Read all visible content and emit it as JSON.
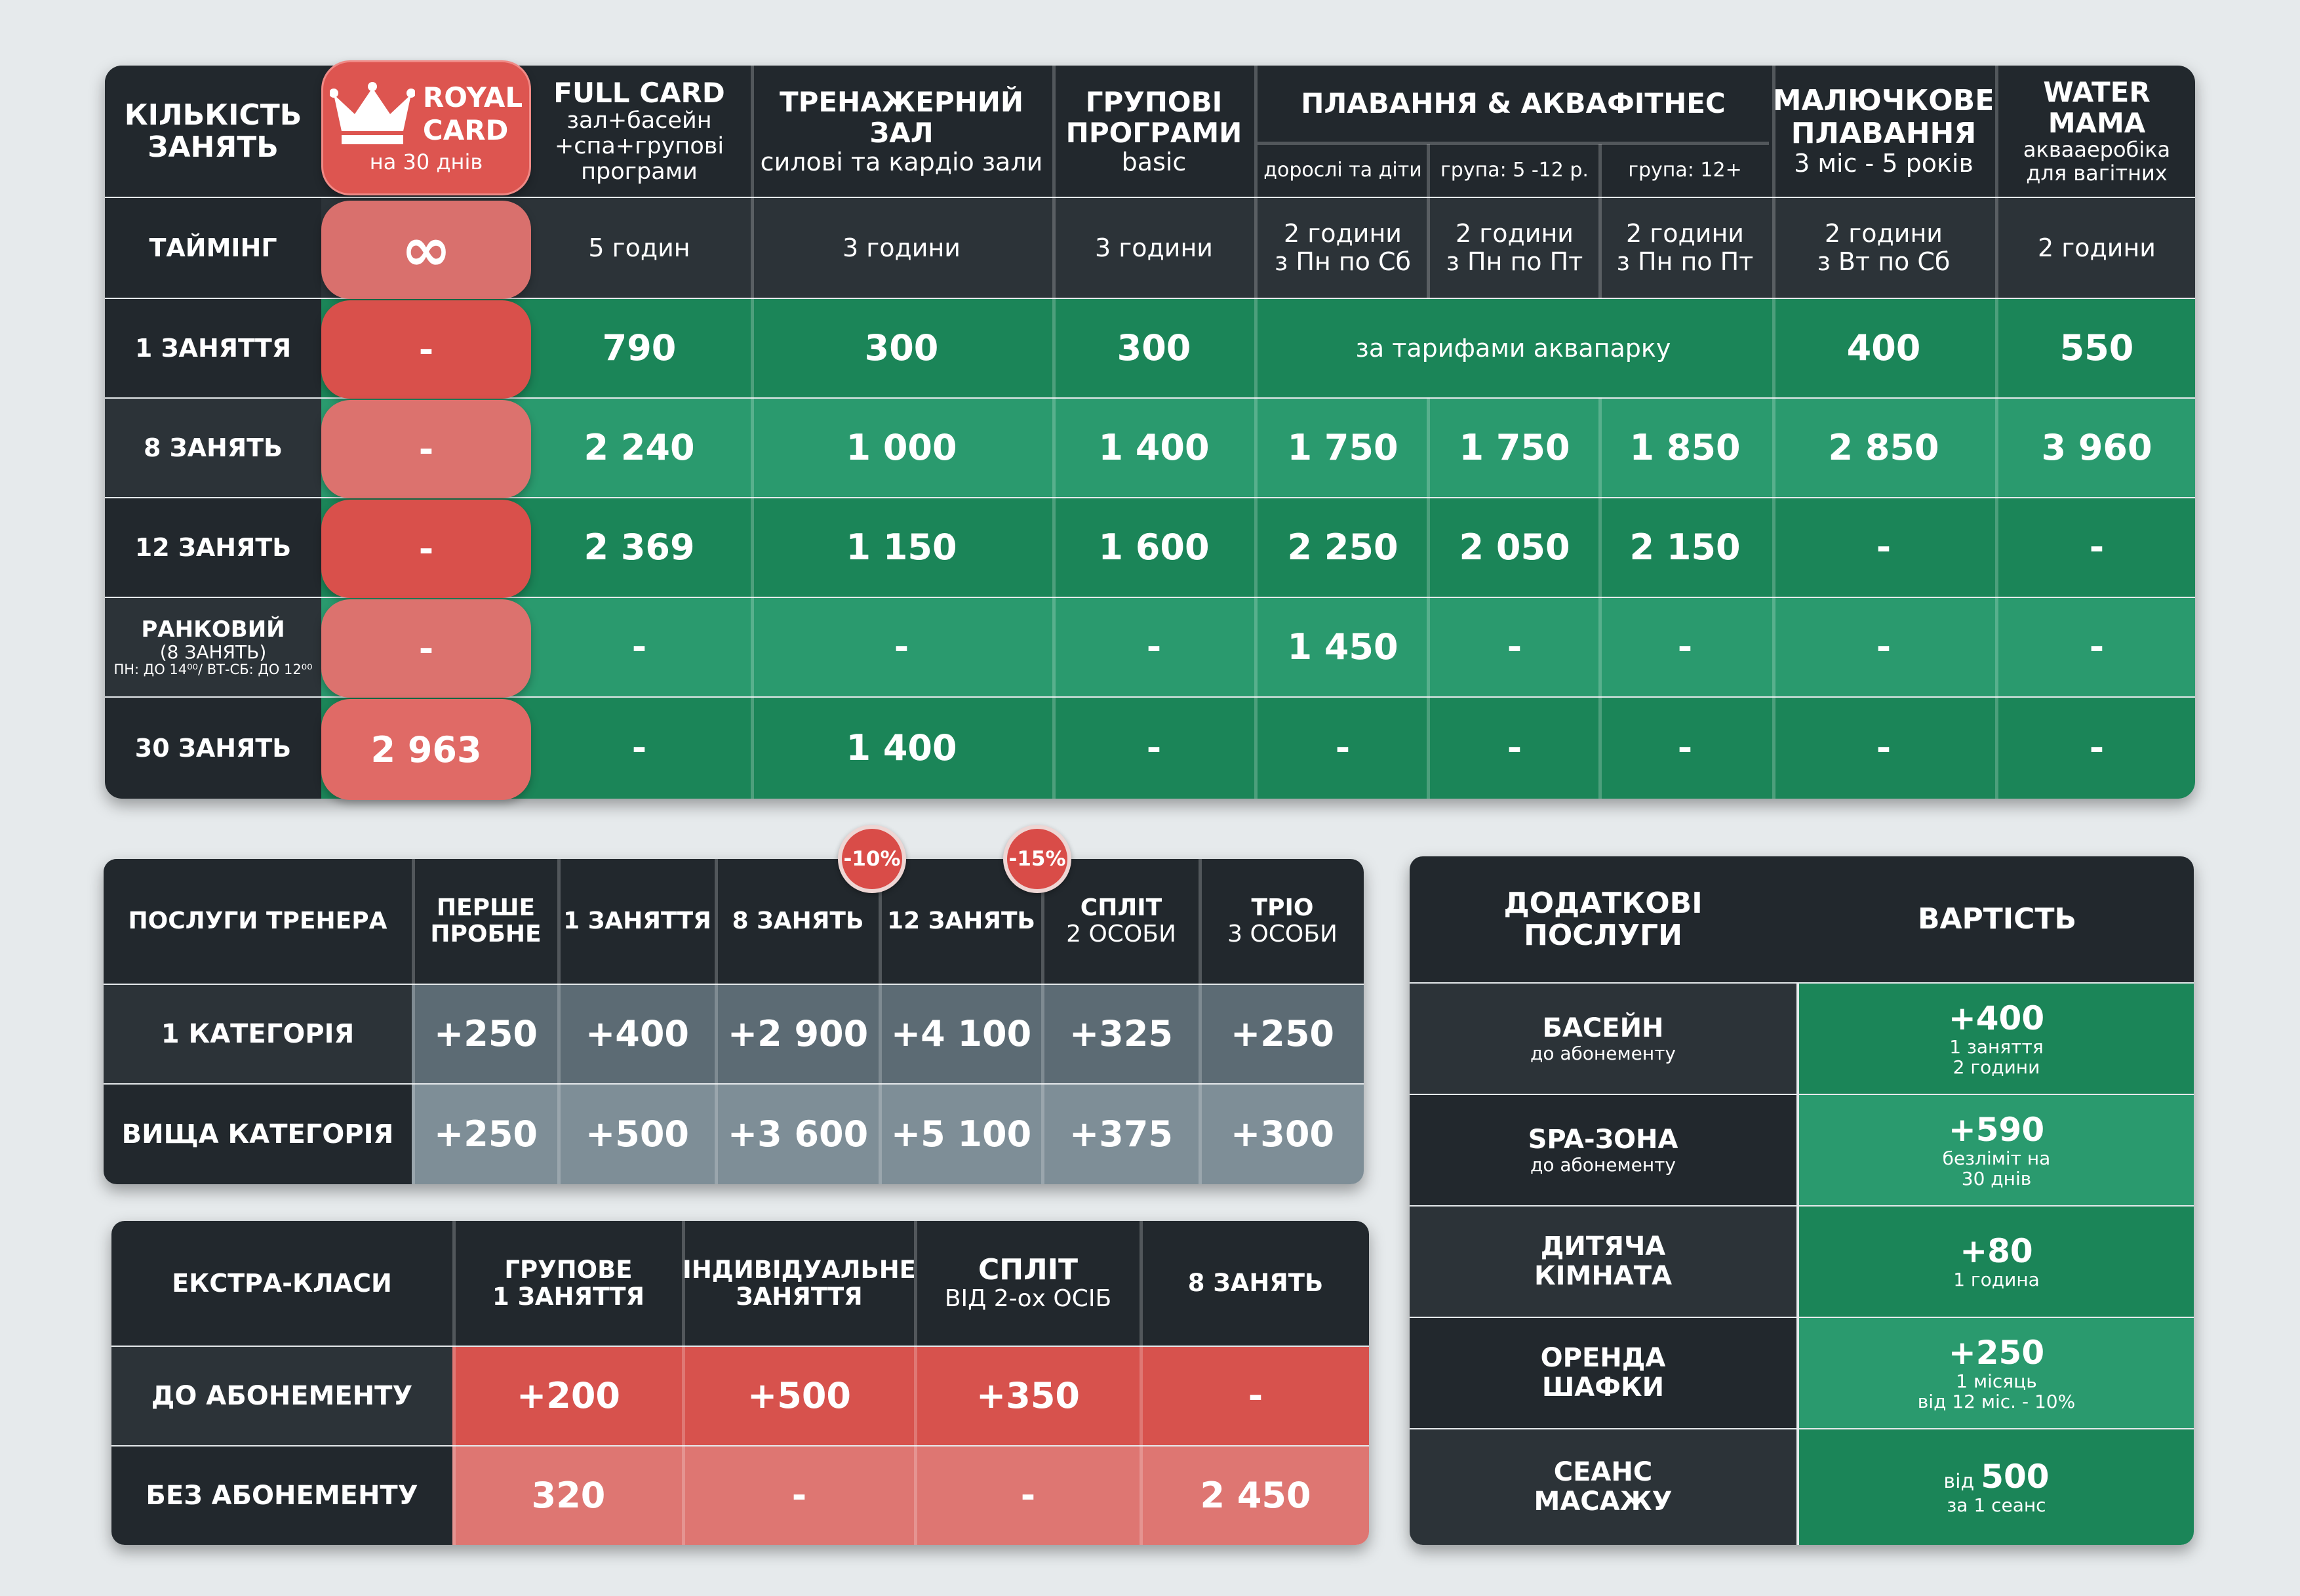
{
  "main": {
    "corner": "КІЛЬКІСТЬ ЗАНЯТЬ",
    "royal": {
      "title1": "ROYAL",
      "title2": "CARD",
      "sub": "на 30 днів",
      "timing_icon": "∞",
      "values": [
        "-",
        "-",
        "-",
        "-",
        "2 963"
      ]
    },
    "columns": [
      {
        "title": "FULL CARD",
        "sub": "зал+басейн\n+спа+групові\nпрограми"
      },
      {
        "title": "ТРЕНАЖЕРНИЙ\nЗАЛ",
        "sub": "силові та кардіо зали"
      },
      {
        "title": "ГРУПОВІ\nПРОГРАМИ",
        "sub": "basic"
      },
      {
        "title": "ПЛАВАННЯ & АКВАФІТНЕС",
        "subs": [
          "дорослі та діти",
          "група: 5 -12 р.",
          "група: 12+"
        ]
      },
      {
        "title": "МАЛЮЧКОВЕ\nПЛАВАННЯ",
        "sub": "3 міс - 5 років"
      },
      {
        "title": "WATER\nMAMA",
        "sub": "аквааеробіка\nдля вагітних"
      }
    ],
    "timing": {
      "label": "ТАЙМІНГ",
      "values": [
        "5 годин",
        "3 години",
        "3 години",
        "2 години\nз Пн по Сб",
        "2 години\nз Пн по Пт",
        "2 години\nз Пн по Пт",
        "2 години\nз Вт по Сб",
        "2 години"
      ]
    },
    "rows": [
      {
        "label": "1 ЗАНЯТТЯ",
        "values": [
          "790",
          "300",
          "300",
          "за тарифами аквапарку",
          "400",
          "550"
        ]
      },
      {
        "label": "8 ЗАНЯТЬ",
        "values": [
          "2 240",
          "1 000",
          "1 400",
          "1 750",
          "1 750",
          "1 850",
          "2 850",
          "3 960"
        ]
      },
      {
        "label": "12 ЗАНЯТЬ",
        "values": [
          "2 369",
          "1 150",
          "1 600",
          "2 250",
          "2 050",
          "2 150",
          "-",
          "-"
        ]
      },
      {
        "label": "РАНКОВИЙ",
        "label_sub": "(8 ЗАНЯТЬ)",
        "label_tiny": "ПН: ДО 14⁰⁰/ ВТ-СБ: ДО 12⁰⁰",
        "values": [
          "-",
          "-",
          "-",
          "1 450",
          "-",
          "-",
          "-",
          "-"
        ]
      },
      {
        "label": "30 ЗАНЯТЬ",
        "values": [
          "-",
          "1 400",
          "-",
          "-",
          "-",
          "-",
          "-",
          "-"
        ]
      }
    ]
  },
  "trainer": {
    "corner": "ПОСЛУГИ ТРЕНЕРА",
    "headers": [
      {
        "title": "ПЕРШЕ\nПРОБНЕ"
      },
      {
        "title": "1 ЗАНЯТТЯ"
      },
      {
        "title": "8 ЗАНЯТЬ"
      },
      {
        "title": "12 ЗАНЯТЬ"
      },
      {
        "title": "СПЛІТ",
        "sub": "2 ОСОБИ"
      },
      {
        "title": "ТРІО",
        "sub": "3 ОСОБИ"
      }
    ],
    "badges": [
      "-10%",
      "-15%"
    ],
    "rows": [
      {
        "label": "1 КАТЕГОРІЯ",
        "values": [
          "+250",
          "+400",
          "+2 900",
          "+4 100",
          "+325",
          "+250"
        ]
      },
      {
        "label": "ВИЩА КАТЕГОРІЯ",
        "values": [
          "+250",
          "+500",
          "+3 600",
          "+5 100",
          "+375",
          "+300"
        ]
      }
    ]
  },
  "extra": {
    "corner": "ЕКСТРА-КЛАСИ",
    "headers": [
      {
        "title": "ГРУПОВЕ\n1 ЗАНЯТТЯ"
      },
      {
        "title": "ІНДИВІДУАЛЬНЕ\nЗАНЯТТЯ"
      },
      {
        "title": "СПЛІТ",
        "sub": "ВІД 2-ох ОСІБ"
      },
      {
        "title": "8 ЗАНЯТЬ"
      }
    ],
    "rows": [
      {
        "label": "ДО АБОНЕМЕНТУ",
        "values": [
          "+200",
          "+500",
          "+350",
          "-"
        ]
      },
      {
        "label": "БЕЗ АБОНЕМЕНТУ",
        "values": [
          "320",
          "-",
          "-",
          "2 450"
        ]
      }
    ]
  },
  "additional": {
    "header_left": "ДОДАТКОВІ\nПОСЛУГИ",
    "header_right": "ВАРТІСТЬ",
    "rows": [
      {
        "name": "БАСЕЙН",
        "name_sub": "до абонементу",
        "prefix": "",
        "price": "+400",
        "price_sub": "1 заняття\n2 години"
      },
      {
        "name": "SPA-ЗОНА",
        "name_sub": "до абонементу",
        "prefix": "",
        "price": "+590",
        "price_sub": "безліміт на\n30 днів"
      },
      {
        "name": "ДИТЯЧА\nКІМНАТА",
        "name_sub": "",
        "prefix": "",
        "price": "+80",
        "price_sub": "1 година"
      },
      {
        "name": "ОРЕНДА\nШАФКИ",
        "name_sub": "",
        "prefix": "",
        "price": "+250",
        "price_sub": "1 місяць\nвід 12 міс. - 10%"
      },
      {
        "name": "СЕАНС\nМАСАЖУ",
        "name_sub": "",
        "prefix": "від",
        "price": "500",
        "price_sub": "за 1 сеанс"
      }
    ]
  }
}
